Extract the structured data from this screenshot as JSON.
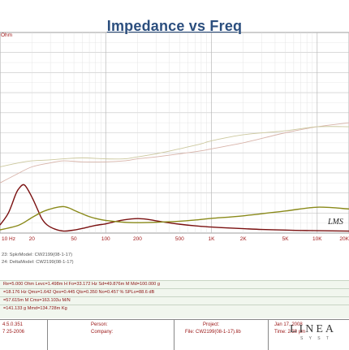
{
  "chart_data": {
    "type": "line",
    "title": "Impedance vs Freq",
    "y_unit_label": "Ohm",
    "x_tick_labels": [
      "10 Hz",
      "20",
      "50",
      "100",
      "200",
      "500",
      "1K",
      "2K",
      "5K",
      "10K",
      "20K"
    ],
    "x_ticks": [
      10,
      20,
      50,
      100,
      200,
      500,
      1000,
      2000,
      5000,
      10000,
      20000
    ],
    "x_scale": "log",
    "xlim": [
      10,
      20000
    ],
    "ylim": [
      0,
      100
    ],
    "grid": true,
    "annotation": "LMS",
    "series": [
      {
        "color": "#7a1010",
        "x": [
          10,
          12,
          14,
          15,
          17,
          20,
          23,
          25,
          28,
          33,
          40,
          50,
          60,
          80,
          100,
          120,
          150,
          200,
          250,
          300,
          400,
          500,
          700,
          1000,
          1500,
          2000,
          3000,
          5000,
          7000,
          10000,
          20000
        ],
        "y": [
          4,
          10,
          19,
          22,
          24,
          18,
          11,
          7,
          4,
          2,
          1,
          1.5,
          2.3,
          3.8,
          4.6,
          5.6,
          6.6,
          7.2,
          6.8,
          6.1,
          5.1,
          4.4,
          3.6,
          3.0,
          2.5,
          2.2,
          1.8,
          1.5,
          1.3,
          1.2,
          1.0
        ]
      },
      {
        "color": "#8a8a1a",
        "x": [
          10,
          15,
          20,
          25,
          30,
          35,
          40,
          45,
          50,
          60,
          70,
          80,
          100,
          150,
          200,
          300,
          500,
          700,
          1000,
          2000,
          5000,
          10000,
          20000
        ],
        "y": [
          1.6,
          3.9,
          7.7,
          10.5,
          12,
          12.9,
          13.2,
          12.5,
          11.4,
          9.6,
          8.2,
          7.3,
          6.3,
          5.4,
          5.2,
          5.4,
          5.9,
          6.5,
          7.3,
          8.6,
          11,
          12.9,
          12
        ]
      },
      {
        "color": "#d8b4aa",
        "x": [
          10,
          14,
          20,
          30,
          40,
          60,
          100,
          150,
          200,
          300,
          500,
          800,
          1000,
          2000,
          5000,
          10000,
          20000
        ],
        "y": [
          25,
          29,
          33,
          35,
          36,
          35.5,
          35.5,
          36,
          37,
          38,
          39.5,
          41,
          42,
          45,
          50,
          53,
          55
        ]
      },
      {
        "color": "#ccc89e",
        "x": [
          10,
          15,
          20,
          30,
          40,
          60,
          100,
          150,
          200,
          300,
          500,
          800,
          1000,
          2000,
          5000,
          10000,
          20000
        ],
        "y": [
          33,
          35,
          36,
          36.5,
          37,
          37.5,
          37,
          37,
          38,
          39.5,
          42,
          44.5,
          46,
          49,
          51,
          53,
          53
        ]
      }
    ]
  },
  "legend": [
    "23: SpkrModel: CW2199(08-1-17)",
    "24: DeltaModel: CW2199(08-1-17)"
  ],
  "params": [
    "Re=5.000 Ohm  Levc=1.498m H  Fo=33.172 Hz  Sd=49.876m M   Md=100.000 g",
    "=18.176 Hz  Qms=1.642  Qes=0.445  Qts=0.350  No=0.457 %  SPLo=88.6 dB",
    "=57.615m M    Cms=163.103u M/N",
    "=141.133 g  Mmd=134.728m Kg"
  ],
  "footer": {
    "version": "4.5.0.351",
    "date_created": "7 25-2006",
    "person_label": "Person:",
    "company_label": "Company:",
    "project_label": "Project:",
    "file": "File: CW2199(08-1-17).lib",
    "date": "Jan 17, 2008",
    "time": "Time: 2:30 pm",
    "logo": "LINEA",
    "logo_sub": "S Y S T"
  }
}
